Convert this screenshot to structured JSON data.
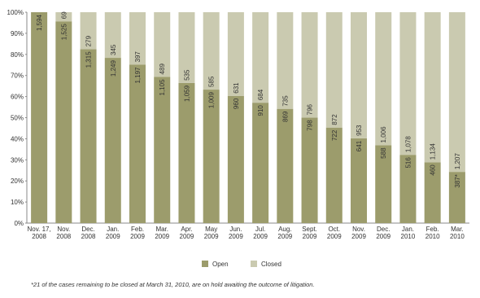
{
  "chart_data": {
    "type": "bar",
    "stacking": "percent",
    "categories": [
      [
        "Nov. 17,",
        "2008"
      ],
      [
        "Nov.",
        "2008"
      ],
      [
        "Dec.",
        "2008"
      ],
      [
        "Jan.",
        "2009"
      ],
      [
        "Feb.",
        "2009"
      ],
      [
        "Mar.",
        "2009"
      ],
      [
        "Apr.",
        "2009"
      ],
      [
        "May",
        "2009"
      ],
      [
        "Jun.",
        "2009"
      ],
      [
        "Jul.",
        "2009"
      ],
      [
        "Aug.",
        "2009"
      ],
      [
        "Sept.",
        "2009"
      ],
      [
        "Oct.",
        "2009"
      ],
      [
        "Nov.",
        "2009"
      ],
      [
        "Dec.",
        "2009"
      ],
      [
        "Jan.",
        "2010"
      ],
      [
        "Feb.",
        "2010"
      ],
      [
        "Mar.",
        "2010"
      ]
    ],
    "series": [
      {
        "name": "Open",
        "color": "#9c9c6c",
        "values": [
          1594,
          1525,
          1315,
          1249,
          1197,
          1105,
          1059,
          1009,
          960,
          910,
          869,
          798,
          722,
          641,
          588,
          516,
          460,
          387
        ],
        "value_labels": [
          "1,594",
          "1,525",
          "1,315",
          "1,249",
          "1,197",
          "1,105",
          "1,059",
          "1,009",
          "960",
          "910",
          "869",
          "798",
          "722",
          "641",
          "588",
          "516",
          "460",
          "387*"
        ]
      },
      {
        "name": "Closed",
        "color": "#cacab0",
        "values": [
          null,
          69,
          279,
          345,
          397,
          489,
          535,
          585,
          631,
          684,
          735,
          796,
          872,
          953,
          1006,
          1078,
          1134,
          1207
        ],
        "value_labels": [
          null,
          "69",
          "279",
          "345",
          "397",
          "489",
          "535",
          "585",
          "631",
          "684",
          "735",
          "796",
          "872",
          "953",
          "1,006",
          "1,078",
          "1,134",
          "1,207"
        ]
      }
    ],
    "ylim": [
      0,
      100
    ],
    "yticks": [
      {
        "value": 0,
        "label": "0%"
      },
      {
        "value": 10,
        "label": "10%"
      },
      {
        "value": 20,
        "label": "20%"
      },
      {
        "value": 30,
        "label": "30%"
      },
      {
        "value": 40,
        "label": "40%"
      },
      {
        "value": 50,
        "label": "50%"
      },
      {
        "value": 60,
        "label": "60%"
      },
      {
        "value": 70,
        "label": "70%"
      },
      {
        "value": 80,
        "label": "80%"
      },
      {
        "value": 90,
        "label": "90%"
      },
      {
        "value": 100,
        "label": "100%"
      }
    ],
    "legend": "bottom",
    "footnote": "*21 of the cases remaining to be closed at March 31, 2010, are on hold awaiting the outcome of litigation."
  }
}
